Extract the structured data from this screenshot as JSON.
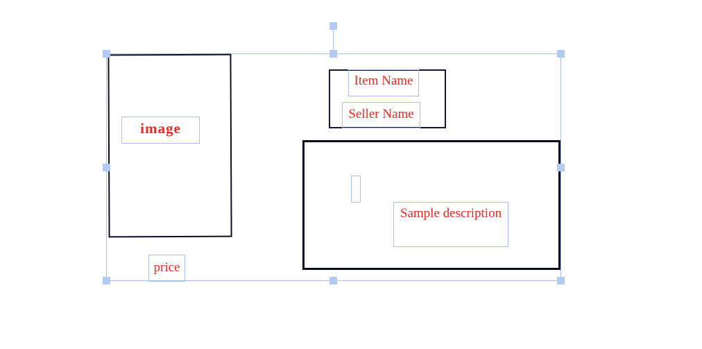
{
  "canvas": {
    "image_placeholder": "image",
    "item_name": "Item Name",
    "seller_name": "Seller Name",
    "description": "Sample description",
    "price": "price"
  },
  "colors": {
    "label_text": "#ea2a22",
    "selection": "#a7c0ee",
    "handle": "#b3cbf3",
    "box_border": "#0b0f25"
  },
  "icons": {
    "handles": "square-resize-handle",
    "rotate": "rotate-handle"
  }
}
